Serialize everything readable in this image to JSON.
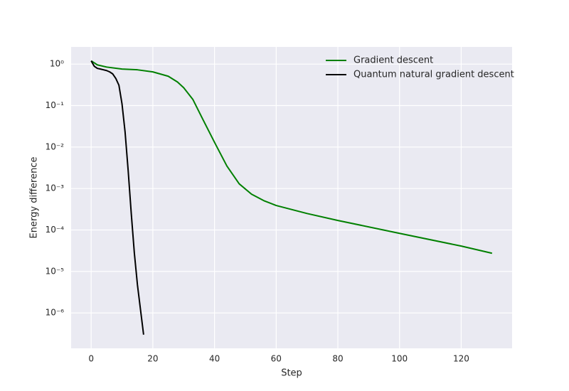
{
  "chart_data": {
    "type": "line",
    "xlabel": "Step",
    "ylabel": "Energy difference",
    "xlim": [
      -6.5,
      136.5
    ],
    "xticks": [
      0,
      20,
      40,
      60,
      80,
      100,
      120
    ],
    "yscale": "log",
    "ylim": [
      1.4e-07,
      2.6
    ],
    "yticks": [
      {
        "value": 1,
        "label": "10⁰"
      },
      {
        "value": 0.1,
        "label": "10⁻¹"
      },
      {
        "value": 0.01,
        "label": "10⁻²"
      },
      {
        "value": 0.001,
        "label": "10⁻³"
      },
      {
        "value": 0.0001,
        "label": "10⁻⁴"
      },
      {
        "value": 1e-05,
        "label": "10⁻⁵"
      },
      {
        "value": 1e-06,
        "label": "10⁻⁶"
      }
    ],
    "grid": true,
    "legend": "upper right",
    "series": [
      {
        "name": "Gradient descent",
        "color": "#008000",
        "x": [
          0,
          2,
          5,
          10,
          15,
          20,
          25,
          28,
          30,
          33,
          36,
          40,
          44,
          48,
          52,
          56,
          60,
          70,
          80,
          100,
          120,
          130
        ],
        "values": [
          1.2,
          0.96,
          0.85,
          0.76,
          0.73,
          0.65,
          0.51,
          0.37,
          0.27,
          0.14,
          0.05,
          0.013,
          0.0035,
          0.0013,
          0.00073,
          0.00051,
          0.00039,
          0.00025,
          0.00017,
          8.3e-05,
          4.1e-05,
          2.75e-05
        ]
      },
      {
        "name": "Quantum natural gradient descent",
        "color": "#000000",
        "x": [
          0,
          1,
          2,
          3,
          4,
          5,
          6,
          7,
          8,
          9,
          10,
          11,
          12,
          13,
          14,
          15,
          16,
          17
        ],
        "values": [
          1.2,
          0.89,
          0.79,
          0.76,
          0.73,
          0.7,
          0.65,
          0.58,
          0.45,
          0.31,
          0.11,
          0.023,
          0.0027,
          0.00025,
          2.8e-05,
          4.8e-06,
          1.2e-06,
          3e-07
        ]
      }
    ]
  }
}
